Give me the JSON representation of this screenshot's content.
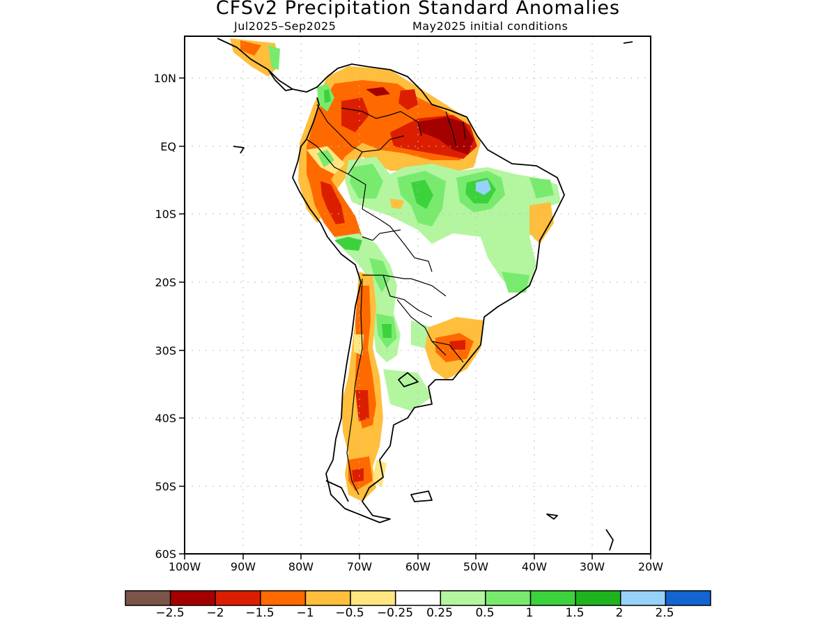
{
  "title": "CFSv2 Precipitation Standard Anomalies",
  "subtitle_left": "Jul2025–Sep2025",
  "subtitle_right": "May2025 initial conditions",
  "lat_labels": [
    "10N",
    "EQ",
    "10S",
    "20S",
    "30S",
    "40S",
    "50S",
    "60S"
  ],
  "lon_labels": [
    "100W",
    "90W",
    "80W",
    "70W",
    "60W",
    "50W",
    "40W",
    "30W",
    "20W"
  ],
  "colorbar": {
    "colors": [
      "#7a5548",
      "#a50000",
      "#dc1e00",
      "#ff6a00",
      "#ffbe3c",
      "#ffe680",
      "#ffffff",
      "#b4f5a0",
      "#78eb6e",
      "#3cd23c",
      "#1eb41e",
      "#96d2fa",
      "#1464d2"
    ],
    "labels": [
      "−2.5",
      "−2",
      "−1.5",
      "−1",
      "−0.5",
      "−0.25",
      "0.25",
      "0.5",
      "1",
      "1.5",
      "2",
      "2.5"
    ]
  },
  "map_data": {
    "region": "South America",
    "lon_range": [
      -100,
      -20
    ],
    "lat_range": [
      -60,
      15
    ],
    "variable": "Precipitation standard anomaly",
    "notable_anomalies": [
      {
        "area": "Northern Brazil / Guianas",
        "category": "-2.5 to -1.5"
      },
      {
        "area": "Venezuela / Colombia",
        "category": "-1.5 to -0.5"
      },
      {
        "area": "Central Amazon",
        "category": "0.5 to 1.5"
      },
      {
        "area": "Eastern Amazon (Para)",
        "category": "2 to 2.5"
      },
      {
        "area": "Southern Brazil coast",
        "category": "-1.5 to -0.25"
      },
      {
        "area": "Central Chile / Andes",
        "category": "-1.5 to -0.25"
      },
      {
        "area": "Southern Patagonia",
        "category": "-1.5 to -0.5"
      },
      {
        "area": "Paraguay / N Argentina",
        "category": "0.25 to 1.5"
      }
    ]
  }
}
